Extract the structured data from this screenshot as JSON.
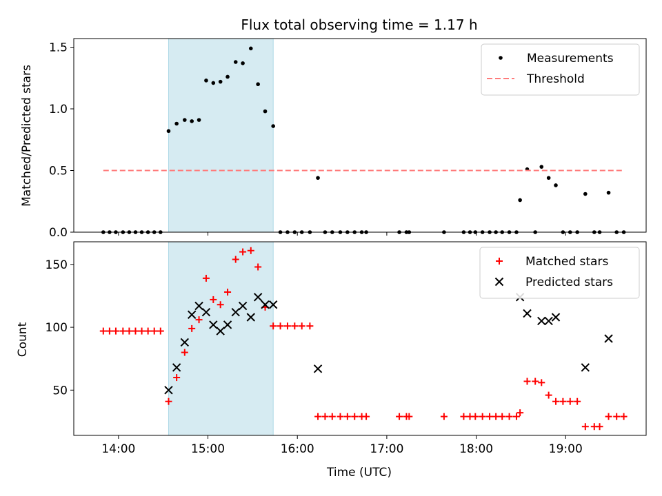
{
  "chart_data": [
    {
      "type": "scatter",
      "title": "Flux total observing time = 1.17 h",
      "xlabel": "",
      "ylabel": "Matched/Predicted stars",
      "xlim": [
        13.5,
        19.9
      ],
      "ylim": [
        0,
        1.57
      ],
      "y_ticks": [
        0,
        0.5,
        1.0,
        1.5
      ],
      "y_tick_labels": [
        "0.0",
        "0.5",
        "1.0",
        "1.5"
      ],
      "x_ticks": [
        14,
        15,
        16,
        17,
        18,
        19
      ],
      "x_tick_labels_visible": false,
      "shaded_span": [
        14.56,
        15.73
      ],
      "shaded_color": "#add8e6",
      "legend": {
        "position": "top-right",
        "entries": [
          {
            "label": "Measurements",
            "marker": "dot",
            "color": "#000000"
          },
          {
            "label": "Threshold",
            "marker": "dashed-line",
            "color": "#ff7b7b"
          }
        ]
      },
      "series": [
        {
          "name": "Measurements",
          "marker": "dot",
          "color": "#000000",
          "x": [
            13.83,
            13.9,
            13.97,
            14.05,
            14.12,
            14.19,
            14.26,
            14.33,
            14.4,
            14.47,
            14.56,
            14.65,
            14.74,
            14.82,
            14.9,
            14.98,
            15.06,
            15.14,
            15.22,
            15.31,
            15.39,
            15.48,
            15.56,
            15.64,
            15.73,
            15.81,
            15.89,
            15.97,
            16.05,
            16.14,
            16.23,
            16.31,
            16.39,
            16.48,
            16.56,
            16.64,
            16.72,
            16.77,
            17.14,
            17.22,
            17.25,
            17.64,
            17.86,
            17.93,
            17.99,
            18.07,
            18.15,
            18.22,
            18.29,
            18.37,
            18.45,
            18.49,
            18.57,
            18.66,
            18.73,
            18.81,
            18.89,
            18.97,
            19.05,
            19.13,
            19.22,
            19.32,
            19.38,
            19.48,
            19.57,
            19.65
          ],
          "y": [
            0,
            0,
            0,
            0,
            0,
            0,
            0,
            0,
            0,
            0,
            0.82,
            0.88,
            0.91,
            0.9,
            0.91,
            1.23,
            1.21,
            1.22,
            1.26,
            1.38,
            1.37,
            1.49,
            1.2,
            0.98,
            0.86,
            0,
            0,
            0,
            0,
            0,
            0.44,
            0,
            0,
            0,
            0,
            0,
            0,
            0,
            0,
            0,
            0,
            0,
            0,
            0,
            0,
            0,
            0,
            0,
            0,
            0,
            0,
            0.26,
            0.51,
            0,
            0.53,
            0.44,
            0.38,
            0,
            0,
            0,
            0.31,
            0,
            0,
            0.32,
            0,
            0
          ]
        },
        {
          "name": "Threshold",
          "marker": "dashed-line",
          "color": "#ff7b7b",
          "x": [
            13.83,
            19.65
          ],
          "y": [
            0.5,
            0.5
          ]
        }
      ]
    },
    {
      "type": "scatter",
      "title": "",
      "xlabel": "Time (UTC)",
      "ylabel": "Count",
      "xlim": [
        13.5,
        19.9
      ],
      "ylim": [
        14,
        168
      ],
      "y_ticks": [
        50,
        100,
        150
      ],
      "y_tick_labels": [
        "50",
        "100",
        "150"
      ],
      "x_ticks": [
        14,
        15,
        16,
        17,
        18,
        19
      ],
      "x_tick_labels": [
        "14:00",
        "15:00",
        "16:00",
        "17:00",
        "18:00",
        "19:00"
      ],
      "shaded_span": [
        14.56,
        15.73
      ],
      "shaded_color": "#add8e6",
      "legend": {
        "position": "top-right",
        "entries": [
          {
            "label": "Matched stars",
            "marker": "plus",
            "color": "#ff0000"
          },
          {
            "label": "Predicted stars",
            "marker": "x",
            "color": "#000000"
          }
        ]
      },
      "series": [
        {
          "name": "Matched stars",
          "marker": "plus",
          "color": "#ff0000",
          "x": [
            13.83,
            13.9,
            13.97,
            14.05,
            14.12,
            14.19,
            14.26,
            14.33,
            14.4,
            14.47,
            14.56,
            14.65,
            14.74,
            14.82,
            14.9,
            14.98,
            15.06,
            15.14,
            15.22,
            15.31,
            15.39,
            15.48,
            15.56,
            15.64,
            15.73,
            15.81,
            15.89,
            15.97,
            16.05,
            16.14,
            16.23,
            16.31,
            16.39,
            16.48,
            16.56,
            16.64,
            16.72,
            16.77,
            17.14,
            17.22,
            17.25,
            17.64,
            17.86,
            17.93,
            17.99,
            18.07,
            18.15,
            18.22,
            18.29,
            18.37,
            18.45,
            18.49,
            18.57,
            18.66,
            18.73,
            18.81,
            18.89,
            18.97,
            19.05,
            19.13,
            19.22,
            19.32,
            19.38,
            19.48,
            19.57,
            19.65
          ],
          "y": [
            97,
            97,
            97,
            97,
            97,
            97,
            97,
            97,
            97,
            97,
            41,
            60,
            80,
            99,
            106,
            139,
            122,
            118,
            128,
            154,
            160,
            161,
            148,
            116,
            101,
            101,
            101,
            101,
            101,
            101,
            29,
            29,
            29,
            29,
            29,
            29,
            29,
            29,
            29,
            29,
            29,
            29,
            29,
            29,
            29,
            29,
            29,
            29,
            29,
            29,
            29,
            32,
            57,
            57,
            56,
            46,
            41,
            41,
            41,
            41,
            21,
            21,
            21,
            29,
            29,
            29
          ]
        },
        {
          "name": "Predicted stars",
          "marker": "x",
          "color": "#000000",
          "x": [
            14.56,
            14.65,
            14.74,
            14.82,
            14.9,
            14.98,
            15.06,
            15.14,
            15.22,
            15.31,
            15.39,
            15.48,
            15.56,
            15.64,
            15.73,
            16.23,
            18.49,
            18.57,
            18.73,
            18.81,
            18.89,
            19.22,
            19.48
          ],
          "y": [
            50,
            68,
            88,
            110,
            117,
            112,
            102,
            97,
            102,
            112,
            117,
            108,
            124,
            118,
            118,
            67,
            124,
            111,
            105,
            105,
            108,
            68,
            91
          ]
        }
      ]
    }
  ]
}
